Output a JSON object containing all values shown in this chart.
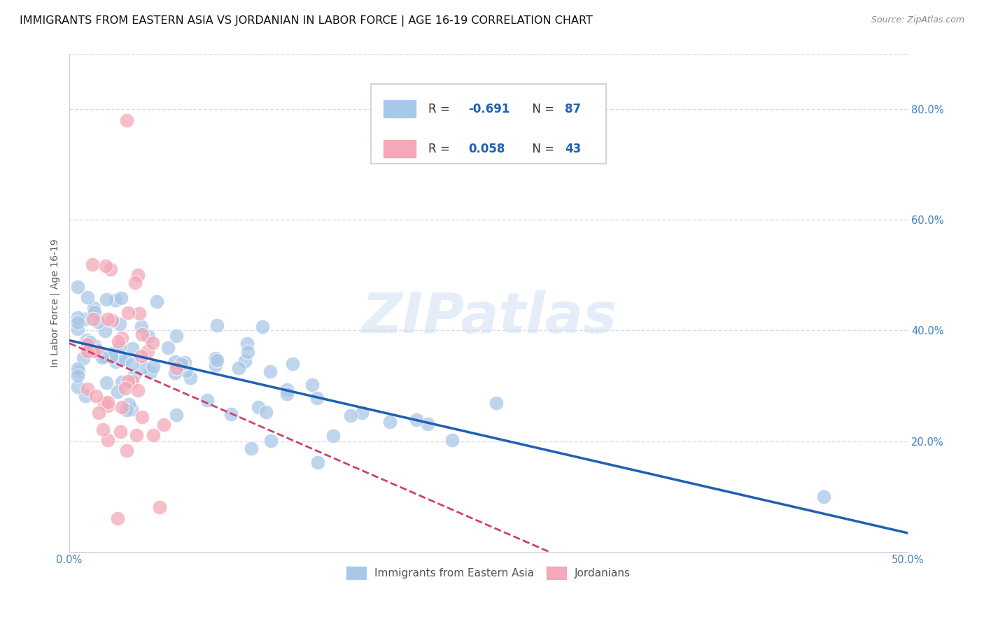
{
  "title": "IMMIGRANTS FROM EASTERN ASIA VS JORDANIAN IN LABOR FORCE | AGE 16-19 CORRELATION CHART",
  "source": "Source: ZipAtlas.com",
  "ylabel": "In Labor Force | Age 16-19",
  "xlim": [
    0.0,
    0.5
  ],
  "ylim": [
    0.0,
    0.9
  ],
  "xticks": [
    0.0,
    0.1,
    0.2,
    0.3,
    0.4,
    0.5
  ],
  "yticks": [
    0.0,
    0.2,
    0.4,
    0.6,
    0.8
  ],
  "blue_R": -0.691,
  "blue_N": 87,
  "pink_R": 0.058,
  "pink_N": 43,
  "blue_color": "#A8C8E8",
  "pink_color": "#F4A8B8",
  "blue_line_color": "#2060B0",
  "pink_line_color": "#D04070",
  "background_color": "#FFFFFF",
  "grid_color": "#D8DCF0",
  "watermark": "ZIPatlas",
  "legend_R_color": "#2060B0",
  "legend_N_color": "#2060B0",
  "tick_color": "#4080C0",
  "title_fontsize": 11.5,
  "axis_label_fontsize": 10,
  "tick_fontsize": 10.5,
  "legend_fontsize": 12,
  "source_fontsize": 9,
  "blue_seed": 101,
  "pink_seed": 202
}
